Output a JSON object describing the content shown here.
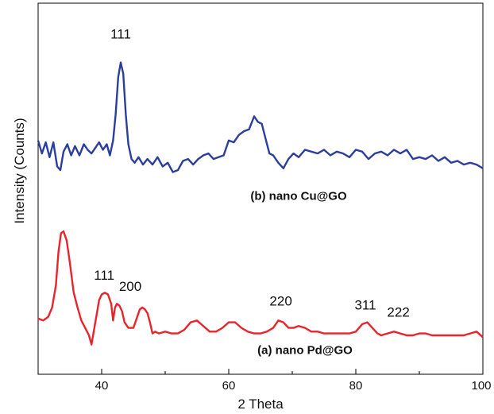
{
  "chart_data": {
    "type": "line",
    "xlabel": "2 Theta",
    "ylabel": "Intensity (Counts)",
    "xlim": [
      30,
      100
    ],
    "ylim": [
      0,
      100
    ],
    "x_ticks": [
      40,
      60,
      80,
      100
    ],
    "grid": false,
    "legend": "none",
    "series": [
      {
        "name": "(b) nano Cu@GO",
        "color": "#2c3e9c",
        "x": [
          30,
          30.6,
          31.2,
          31.8,
          32.4,
          33.0,
          33.5,
          34.0,
          34.6,
          35.2,
          35.8,
          36.5,
          37.2,
          37.8,
          38.4,
          39.0,
          39.6,
          40.2,
          40.8,
          41.3,
          41.8,
          42.2,
          42.6,
          43.0,
          43.4,
          43.8,
          44.2,
          44.7,
          45.2,
          45.8,
          46.5,
          47.2,
          48.0,
          48.8,
          49.6,
          50.4,
          51.2,
          52.0,
          52.8,
          53.6,
          54.4,
          55.2,
          56.0,
          56.8,
          57.6,
          58.4,
          59.2,
          60.0,
          60.8,
          61.6,
          62.4,
          63.2,
          64.0,
          64.6,
          65.2,
          65.8,
          66.4,
          67.0,
          67.8,
          68.6,
          69.4,
          70.2,
          71.0,
          72.0,
          73.0,
          74.0,
          75.0,
          76.0,
          77.0,
          78.0,
          79.0,
          80.0,
          81.0,
          82.0,
          83.0,
          84.0,
          85.0,
          86.0,
          87.0,
          88.0,
          89.0,
          90.0,
          91.0,
          92.0,
          93.0,
          94.0,
          95.0,
          96.0,
          97.0,
          98.0,
          99.0,
          100.0
        ],
        "y": [
          63.0,
          59.5,
          62.5,
          58.5,
          62.5,
          56.0,
          55.0,
          60.0,
          62.0,
          59.0,
          61.5,
          59.0,
          62.0,
          60.5,
          59.5,
          61.0,
          62.5,
          60.5,
          62.0,
          59.0,
          63.0,
          70.0,
          80.0,
          84.0,
          81.0,
          70.0,
          62.0,
          58.0,
          57.0,
          58.5,
          56.5,
          58.0,
          56.5,
          58.5,
          56.0,
          57.0,
          54.5,
          55.0,
          57.5,
          58.0,
          56.5,
          58.0,
          59.0,
          59.5,
          58.0,
          58.5,
          59.0,
          63.0,
          62.5,
          64.5,
          65.5,
          66.0,
          69.5,
          68.0,
          67.5,
          63.5,
          59.5,
          59.0,
          57.0,
          55.5,
          58.0,
          59.5,
          58.5,
          60.5,
          60.0,
          59.5,
          60.5,
          59.0,
          60.0,
          59.5,
          58.5,
          60.5,
          60.0,
          58.0,
          59.5,
          60.0,
          59.0,
          60.5,
          59.5,
          60.5,
          58.0,
          58.5,
          58.0,
          59.0,
          57.5,
          58.5,
          57.0,
          57.5,
          56.5,
          57.0,
          56.5,
          55.5
        ]
      },
      {
        "name": "(a) nano Pd@GO",
        "color": "#e8242c",
        "x": [
          30,
          30.8,
          31.6,
          32.2,
          32.8,
          33.2,
          33.6,
          34.0,
          34.5,
          35.0,
          35.6,
          36.2,
          36.8,
          37.4,
          38.0,
          38.4,
          38.8,
          39.2,
          39.6,
          40.0,
          40.5,
          41.0,
          41.5,
          41.8,
          42.1,
          42.4,
          42.8,
          43.2,
          43.6,
          44.2,
          45.0,
          45.6,
          46.0,
          46.4,
          46.8,
          47.2,
          47.6,
          48.0,
          48.4,
          49.0,
          50.0,
          51.0,
          52.0,
          53.0,
          54.0,
          55.0,
          56.0,
          57.0,
          58.0,
          59.0,
          60.0,
          61.0,
          62.0,
          63.0,
          64.0,
          65.0,
          66.0,
          67.0,
          67.8,
          68.6,
          69.4,
          70.2,
          71.0,
          72.0,
          73.0,
          74.0,
          75.0,
          76.0,
          77.0,
          78.0,
          79.0,
          80.0,
          81.0,
          81.8,
          82.6,
          83.4,
          84.0,
          85.0,
          86.0,
          87.0,
          88.0,
          89.0,
          90.0,
          91.0,
          92.0,
          93.0,
          94.0,
          95.0,
          96.0,
          97.0,
          98.0,
          99.0,
          100.0
        ],
        "y": [
          15.0,
          14.5,
          15.5,
          18.0,
          24.0,
          33.0,
          38.0,
          38.5,
          36.0,
          30.0,
          22.0,
          18.0,
          14.5,
          12.5,
          10.5,
          8.0,
          12.0,
          16.0,
          20.0,
          21.5,
          22.0,
          21.5,
          19.0,
          14.5,
          18.0,
          19.0,
          18.5,
          17.0,
          14.0,
          12.5,
          12.5,
          15.5,
          17.5,
          18.0,
          17.5,
          16.5,
          14.0,
          11.0,
          11.5,
          11.0,
          11.5,
          11.0,
          11.0,
          12.0,
          14.0,
          14.5,
          13.0,
          11.5,
          11.5,
          12.5,
          14.0,
          14.0,
          12.5,
          11.5,
          11.0,
          11.0,
          11.5,
          12.5,
          14.5,
          14.0,
          12.5,
          12.5,
          13.0,
          12.5,
          11.5,
          11.5,
          11.0,
          11.0,
          11.0,
          11.0,
          11.0,
          11.5,
          13.5,
          14.0,
          12.5,
          11.0,
          10.5,
          11.0,
          11.5,
          11.0,
          10.5,
          10.5,
          11.0,
          11.0,
          10.5,
          10.5,
          10.5,
          10.5,
          10.5,
          10.5,
          11.0,
          11.5,
          10.0
        ]
      }
    ],
    "annotations": [
      {
        "text": "111",
        "series": "(b) nano Cu@GO",
        "x": 43.0,
        "y": 90.5
      },
      {
        "text": "111",
        "series": "(a) nano Pd@GO",
        "x": 40.4,
        "y": 25.5
      },
      {
        "text": "200",
        "series": "(a) nano Pd@GO",
        "x": 44.5,
        "y": 22.5
      },
      {
        "text": "220",
        "series": "(a) nano Pd@GO",
        "x": 68.2,
        "y": 18.5
      },
      {
        "text": "311",
        "series": "(a) nano Pd@GO",
        "x": 81.5,
        "y": 17.5
      },
      {
        "text": "222",
        "series": "(a) nano Pd@GO",
        "x": 86.7,
        "y": 15.5
      }
    ],
    "series_labels": [
      {
        "text": "(b) nano Cu@GO",
        "x": 71.0,
        "y": 47.0
      },
      {
        "text": "(a) nano Pd@GO",
        "x": 72.0,
        "y": 5.5
      }
    ]
  }
}
